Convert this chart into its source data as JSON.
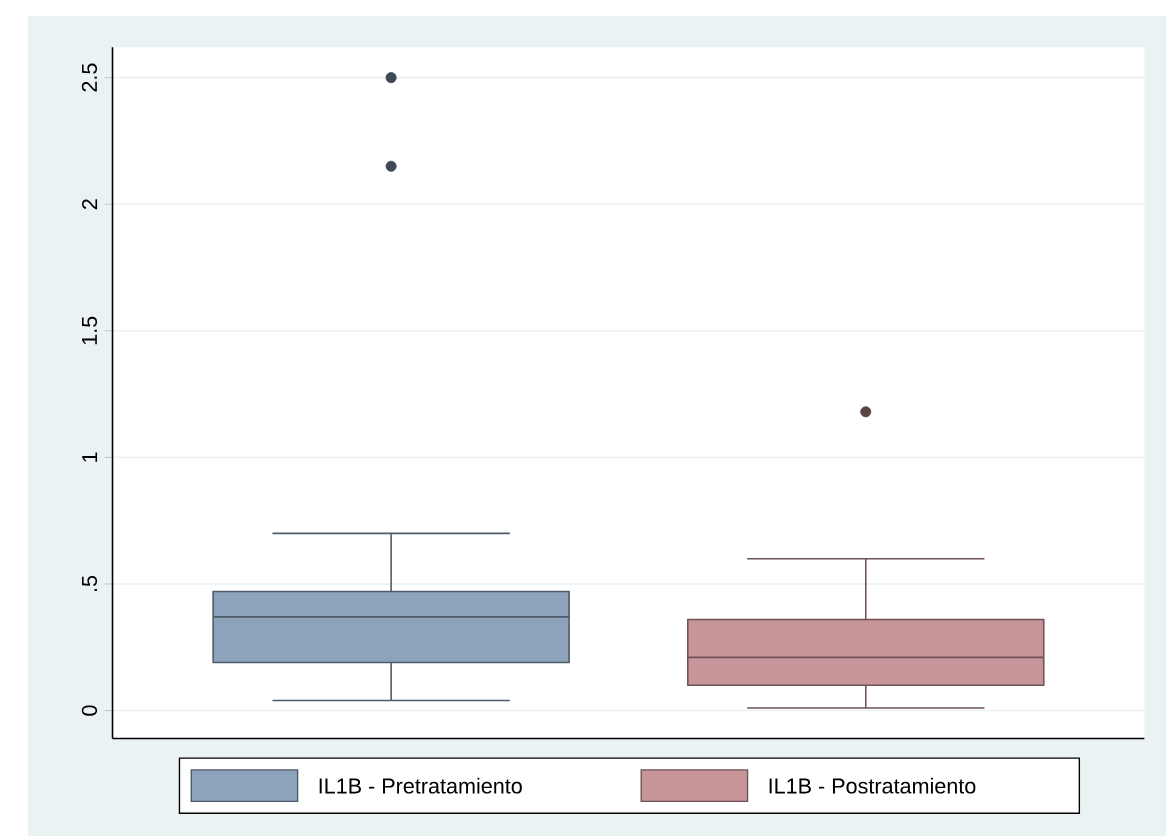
{
  "chart_data": {
    "type": "box",
    "categories": [
      null
    ],
    "series": [
      {
        "name": "IL1B - Pretratamiento",
        "color": "#8ca3bb",
        "boxes": [
          {
            "low": 0.04,
            "q1": 0.19,
            "median": 0.37,
            "q3": 0.47,
            "high": 0.7,
            "outliers": [
              2.15,
              2.5
            ]
          }
        ]
      },
      {
        "name": "IL1B - Postratamiento",
        "color": "#c8959a",
        "boxes": [
          {
            "low": 0.01,
            "q1": 0.1,
            "median": 0.21,
            "q3": 0.36,
            "high": 0.6,
            "outliers": [
              1.18
            ]
          }
        ]
      }
    ],
    "ylim": [
      -0.11,
      2.62
    ],
    "yticks": [
      0,
      {
        "value": 0.5,
        "label": ".5"
      },
      1,
      1.5,
      2,
      2.5
    ],
    "grid": "y",
    "legend": "bottom",
    "tick_labels": "y"
  }
}
